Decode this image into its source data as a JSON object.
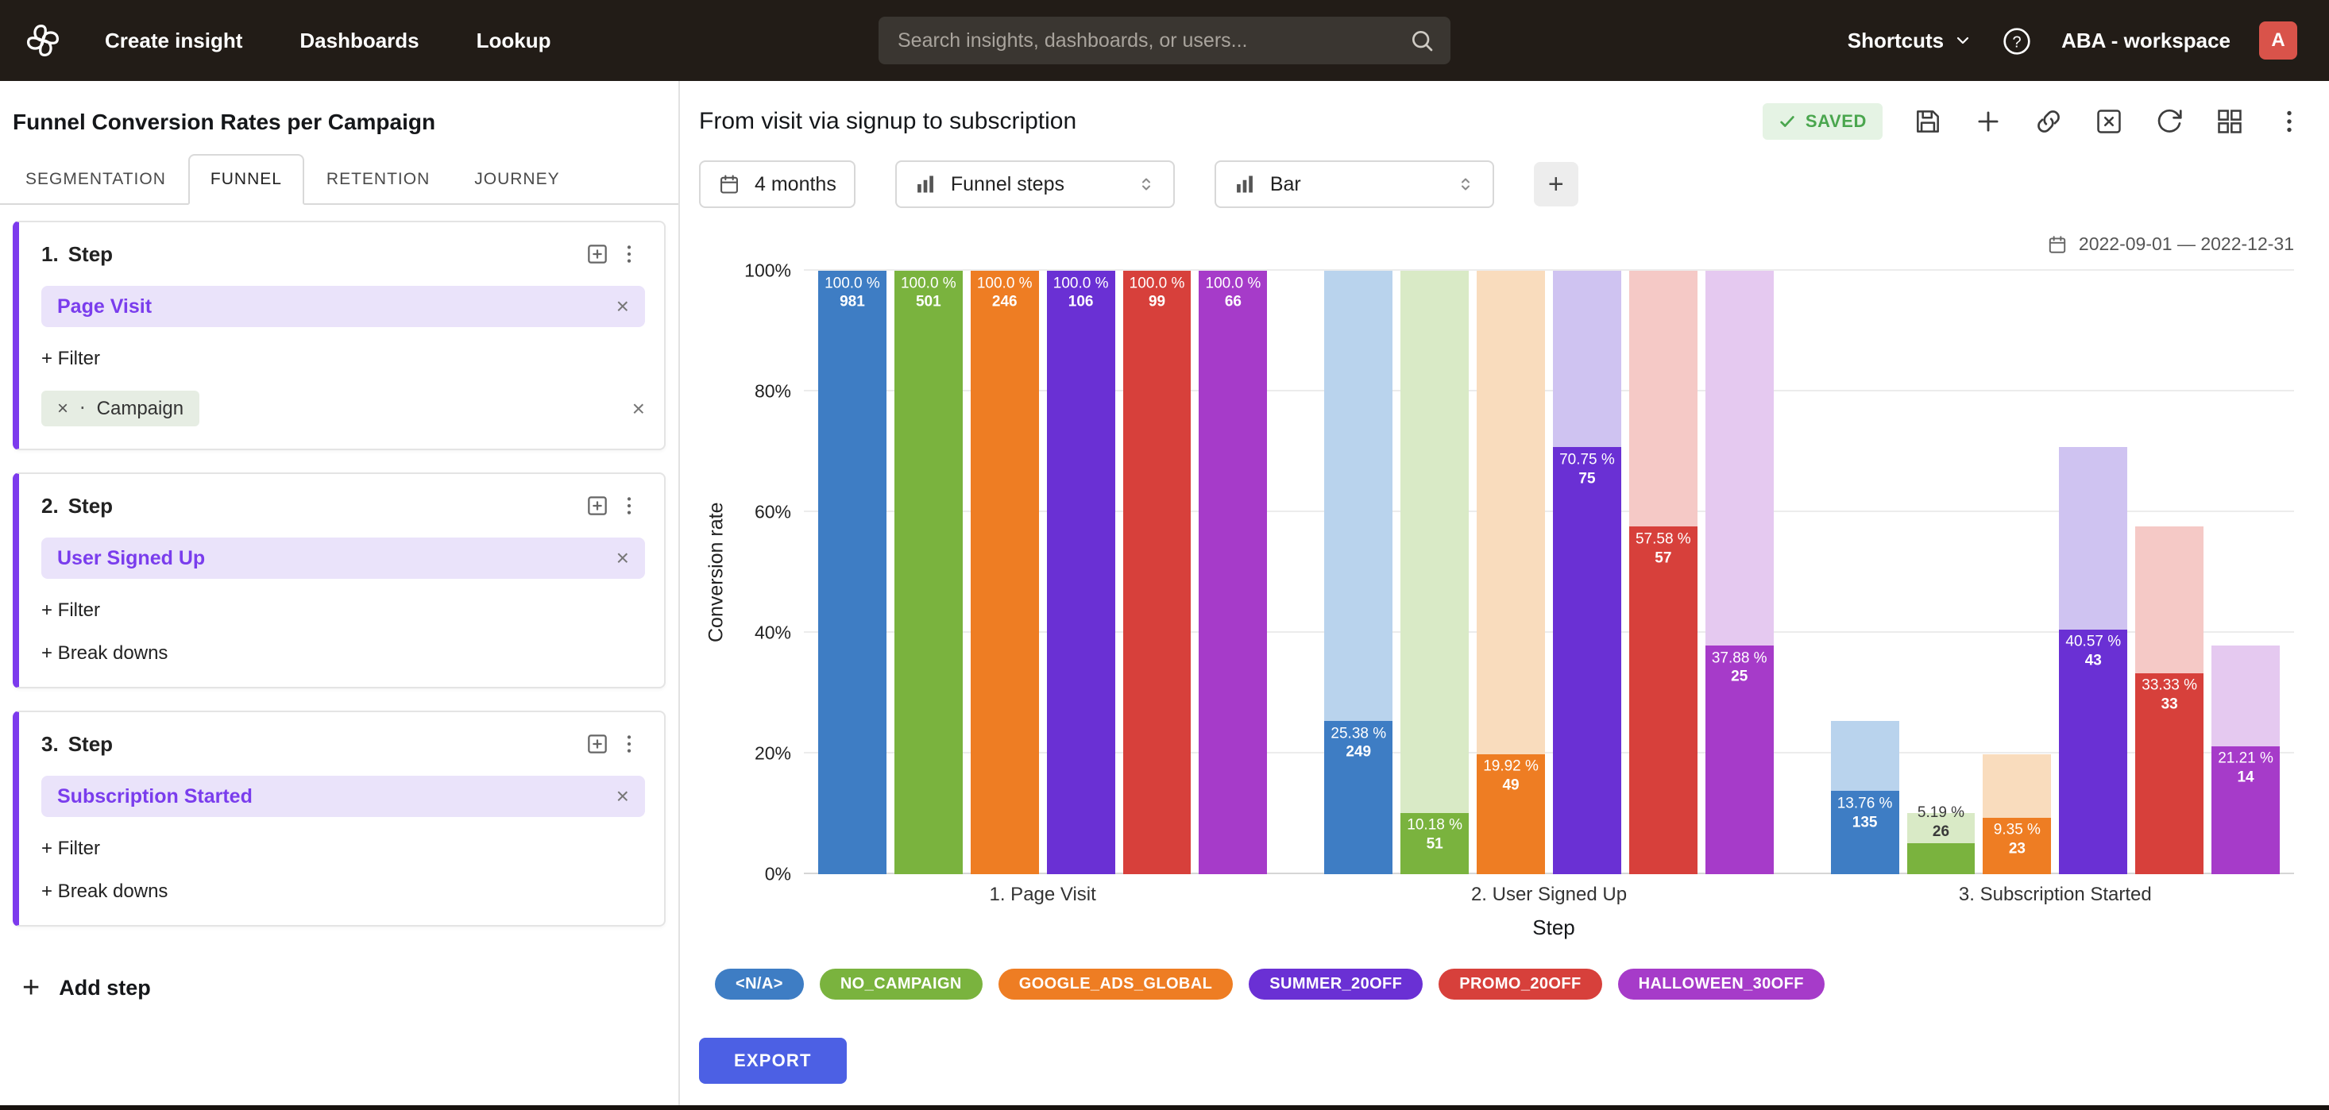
{
  "icons": {
    "close": "×",
    "dot": "⋅",
    "plus": "+"
  },
  "navbar": {
    "nav_items": [
      "Create insight",
      "Dashboards",
      "Lookup"
    ],
    "search_placeholder": "Search insights, dashboards, or users...",
    "shortcuts_label": "Shortcuts",
    "workspace_label": "ABA - workspace",
    "avatar_letter": "A"
  },
  "sidebar": {
    "title": "Funnel Conversion Rates per Campaign",
    "tabs": [
      {
        "label": "SEGMENTATION"
      },
      {
        "label": "FUNNEL"
      },
      {
        "label": "RETENTION"
      },
      {
        "label": "JOURNEY"
      }
    ],
    "steps": [
      {
        "index": "1.",
        "label": "Step",
        "event": "Page Visit",
        "filter_label": "+ Filter",
        "breakdown_chip": "Campaign"
      },
      {
        "index": "2.",
        "label": "Step",
        "event": "User Signed Up",
        "filter_label": "+ Filter",
        "breakdowns_label": "+ Break downs"
      },
      {
        "index": "3.",
        "label": "Step",
        "event": "Subscription Started",
        "filter_label": "+ Filter",
        "breakdowns_label": "+ Break downs"
      }
    ],
    "add_step_label": "Add step"
  },
  "main": {
    "title": "From visit via signup to subscription",
    "saved_badge": "SAVED",
    "controls": {
      "date_button": "4 months",
      "group_select": "Funnel steps",
      "chart_type_select": "Bar"
    },
    "date_range": "2022-09-01 — 2022-12-31",
    "export_label": "EXPORT"
  },
  "chart_data": {
    "type": "bar",
    "title": "Funnel conversion rates per campaign",
    "xlabel": "Step",
    "ylabel": "Conversion rate",
    "ylim": [
      0,
      100
    ],
    "yticks": [
      "0%",
      "20%",
      "40%",
      "60%",
      "80%",
      "100%"
    ],
    "grid": true,
    "legend_position": "bottom",
    "categories": [
      "1. Page Visit",
      "2. User Signed Up",
      "3. Subscription Started"
    ],
    "series": [
      {
        "name": "<N/A>",
        "color": "#3e7dc4",
        "light": "#b9d3ed",
        "rates": [
          100.0,
          25.38,
          13.76
        ],
        "rates_display": [
          "100.0 %",
          "25.38 %",
          "13.76 %"
        ],
        "counts": [
          981,
          249,
          135
        ]
      },
      {
        "name": "NO_CAMPAIGN",
        "color": "#7ab33e",
        "light": "#d9eac6",
        "rates": [
          100.0,
          10.18,
          5.19
        ],
        "rates_display": [
          "100.0 %",
          "10.18 %",
          "5.19 %"
        ],
        "counts": [
          501,
          51,
          26
        ]
      },
      {
        "name": "GOOGLE_ADS_GLOBAL",
        "color": "#ee7d23",
        "light": "#f9dcbd",
        "rates": [
          100.0,
          19.92,
          9.35
        ],
        "rates_display": [
          "100.0 %",
          "19.92 %",
          "9.35 %"
        ],
        "counts": [
          246,
          49,
          23
        ]
      },
      {
        "name": "SUMMER_20OFF",
        "color": "#6a30d4",
        "light": "#cfc3f1",
        "rates": [
          100.0,
          70.75,
          40.57
        ],
        "rates_display": [
          "100.0 %",
          "70.75 %",
          "40.57 %"
        ],
        "counts": [
          106,
          75,
          43
        ]
      },
      {
        "name": "PROMO_20OFF",
        "color": "#d7403b",
        "light": "#f5c9c6",
        "rates": [
          100.0,
          57.58,
          33.33
        ],
        "rates_display": [
          "100.0 %",
          "57.58 %",
          "33.33 %"
        ],
        "counts": [
          99,
          57,
          33
        ]
      },
      {
        "name": "HALLOWEEN_30OFF",
        "color": "#a63bc9",
        "light": "#e5c9f0",
        "rates": [
          100.0,
          37.88,
          21.21
        ],
        "rates_display": [
          "100.0 %",
          "37.88 %",
          "21.21 %"
        ],
        "counts": [
          66,
          25,
          14
        ]
      }
    ]
  }
}
